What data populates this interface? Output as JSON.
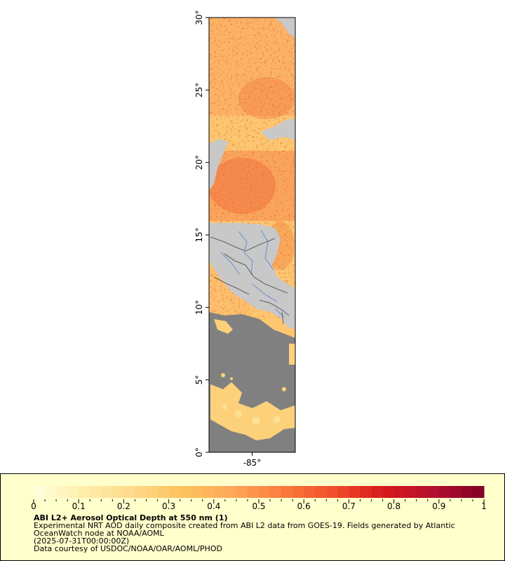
{
  "map": {
    "lat_ticks": [
      {
        "lat": 0,
        "label": "0°"
      },
      {
        "lat": 5,
        "label": "5°"
      },
      {
        "lat": 10,
        "label": "10°"
      },
      {
        "lat": 15,
        "label": "15°"
      },
      {
        "lat": 20,
        "label": "20°"
      },
      {
        "lat": 25,
        "label": "25°"
      },
      {
        "lat": 30,
        "label": "30°"
      }
    ],
    "lon_ticks": [
      {
        "lon": -85,
        "label": "-85°"
      }
    ],
    "extent": {
      "lat_min": 0,
      "lat_max": 30,
      "lon_min": -88,
      "lon_max": -82
    },
    "colors": {
      "land": "#c8c8c8",
      "no_data": "#808080",
      "border": "#333333",
      "river": "#6a8fd0"
    }
  },
  "legend": {
    "title": "ABI L2+ Aerosol Optical Depth at 550 nm (1)",
    "description": "Experimental NRT AOD daily composite created from ABI L2 data from GOES-19. Fields generated by Atlantic OceanWatch node at NOAA/AOML",
    "timestamp": "(2025-07-31T00:00:00Z)",
    "credit": "Data courtesy of USDOC/NOAA/OAR/AOML/PHOD",
    "colorbar": {
      "min": 0,
      "max": 1,
      "tick_labels": [
        "0",
        "0.1",
        "0.2",
        "0.3",
        "0.4",
        "0.5",
        "0.6",
        "0.7",
        "0.8",
        "0.9",
        "1"
      ],
      "stops": [
        "#ffffe0",
        "#ffeeaa",
        "#fed98a",
        "#fdc25c",
        "#fda65a",
        "#fb7b3c",
        "#f04e2c",
        "#d7191c",
        "#b30f2e",
        "#800026"
      ]
    }
  }
}
